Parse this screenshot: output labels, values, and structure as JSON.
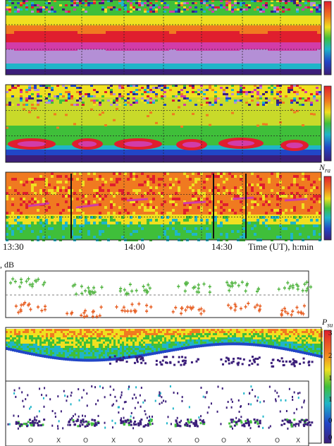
{
  "top_time_axis": {
    "ticks": [
      "13:30",
      "14:00",
      "14:30"
    ],
    "label": "Time (UT), h:min"
  },
  "panels": [
    {
      "id": "p1",
      "kind": "spectrogram",
      "colorbar": true,
      "colorbar_ticks": [],
      "side_label": "",
      "edge_marks": [
        "",
        "",
        ""
      ]
    },
    {
      "id": "p2",
      "kind": "spectrogram-with-bursts",
      "colorbar": true,
      "colorbar_ticks": [],
      "side_label": "",
      "edge_marks": [
        "",
        "",
        ""
      ]
    },
    {
      "id": "p3",
      "kind": "spectrogram-orange",
      "colorbar": true,
      "colorbar_ticks": [],
      "side_label": "N",
      "side_label_sub": "ra",
      "edge_marks": [
        "",
        "",
        ""
      ]
    },
    {
      "id": "p4",
      "kind": "scatter-errorbars",
      "y_unit": ", dB",
      "colorbar": false
    },
    {
      "id": "p5",
      "kind": "spectrogram-sparse",
      "colorbar": true,
      "side_label": "P",
      "side_label_sub": "su",
      "colorbar_ticks": [
        "3",
        "2",
        "1",
        "1",
        "0",
        "0"
      ]
    },
    {
      "id": "p6",
      "kind": "sparse-dots",
      "colorbar": false,
      "markers": [
        "O",
        "X",
        "O",
        "X",
        "O",
        "X",
        "O"
      ]
    }
  ],
  "colors": {
    "purple": "#3b1e7a",
    "blue": "#2146c7",
    "cyan": "#1fb5c9",
    "green": "#3fbf3a",
    "yellow": "#f0e020",
    "orange": "#f07a20",
    "red": "#e01e2e",
    "magenta": "#d23ca8",
    "lavender": "#b48fd6",
    "scatter_green": "#5ab84a",
    "scatter_orange": "#e8642a"
  }
}
